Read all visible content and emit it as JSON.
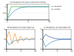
{
  "chart_data": [
    {
      "type": "line",
      "title": "(a) Response to step in desired velocity",
      "x": [
        0,
        1,
        2,
        3,
        4,
        5,
        6,
        7,
        8,
        9,
        10
      ],
      "xlim": [
        0,
        10
      ],
      "xticks": [
        0,
        5,
        10
      ],
      "ylim": [
        0,
        1.2
      ],
      "yticks": [
        0,
        0.5,
        1
      ],
      "legend": "right",
      "series": [
        {
          "name": "desired",
          "color": "#2ca02c",
          "values": [
            0,
            1,
            1,
            1,
            1,
            1,
            1,
            1,
            1,
            1,
            1
          ]
        },
        {
          "name": "actual",
          "color": "#1f77b4",
          "values": [
            0,
            0.45,
            0.75,
            0.9,
            0.97,
            1,
            1,
            1,
            1,
            1,
            1
          ]
        }
      ]
    },
    {
      "type": "line",
      "title": "(b) Response to step input (a)",
      "x": [
        0,
        1,
        2,
        3,
        4,
        5,
        6,
        7,
        8,
        9,
        10
      ],
      "xlim": [
        0,
        10
      ],
      "xticks": [
        0,
        5,
        10
      ],
      "ylim": [
        -1,
        1
      ],
      "yticks": [
        -1,
        0,
        1
      ],
      "series": [
        {
          "color": "#ff7f0e",
          "values": [
            0,
            0.8,
            -0.5,
            0.6,
            -0.4,
            0.3,
            -0.2,
            0.2,
            -0.1,
            0.1,
            0
          ]
        },
        {
          "color": "#1f77b4",
          "values": [
            0,
            -0.6,
            -0.3,
            -0.15,
            -0.1,
            -0.05,
            0,
            0,
            0,
            0,
            0
          ]
        }
      ]
    },
    {
      "type": "line",
      "title": "(c) Response to step input (b)",
      "x": [
        0,
        1,
        2,
        3,
        4,
        5,
        6,
        7,
        8,
        9,
        10
      ],
      "xlim": [
        0,
        10
      ],
      "xticks": [
        0,
        5,
        10
      ],
      "ylim": [
        -1,
        1
      ],
      "yticks": [
        -1,
        0,
        1
      ],
      "series": [
        {
          "color": "#1f77b4",
          "values": [
            0,
            -0.8,
            -0.5,
            -0.3,
            -0.2,
            -0.1,
            -0.05,
            0,
            0,
            0,
            0
          ]
        },
        {
          "color": "#0b3d91",
          "values": [
            0,
            0.5,
            0.3,
            0.2,
            0.1,
            0.05,
            0,
            0,
            0,
            0,
            0
          ]
        }
      ]
    }
  ]
}
